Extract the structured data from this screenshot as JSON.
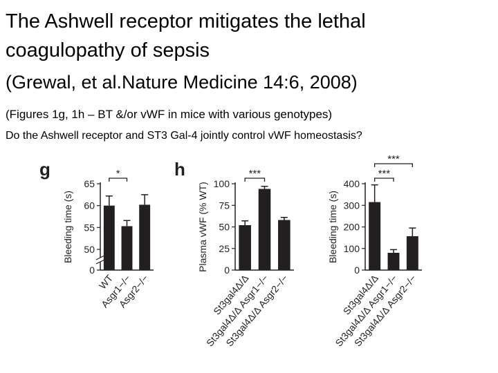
{
  "slide": {
    "title_lines": [
      "The Ashwell receptor mitigates the lethal",
      "coagulopathy of sepsis"
    ],
    "citation": "(Grewal, et al.Nature Medicine 14:6, 2008)",
    "figures_note": "(Figures 1g, 1h – BT &/or vWF in mice with various genotypes)",
    "question": "Do the Ashwell receptor and ST3 Gal-4 jointly control vWF homeostasis?"
  },
  "chart_data": [
    {
      "type": "bar",
      "panel": "g",
      "y_label": "Bleeding time (s)",
      "categories": [
        "WT",
        "Asgr1−/−",
        "Asgr2−/−"
      ],
      "values": [
        60,
        55.3,
        60.2
      ],
      "errors": [
        2.2,
        1.3,
        2.3
      ],
      "color": "#231f20",
      "ylim": [
        0,
        65
      ],
      "yticks": [
        0,
        50,
        55,
        60,
        65
      ],
      "axis_break": 50,
      "annotations": [
        {
          "text": "*",
          "from": 0,
          "to": 1
        }
      ]
    },
    {
      "type": "bar",
      "panel": "h",
      "y_label": "Plasma vWF (% WT)",
      "categories": [
        "St3gal4Δ/Δ",
        "St3gal4Δ/Δ Asgr1−/−",
        "St3gal4Δ/Δ Asgr2−/−"
      ],
      "values": [
        52,
        94,
        58
      ],
      "errors": [
        5,
        3,
        3
      ],
      "color": "#231f20",
      "ylim": [
        0,
        100
      ],
      "yticks": [
        0,
        25,
        50,
        75,
        100
      ],
      "annotations": [
        {
          "text": "***",
          "from": 0,
          "to": 1
        }
      ]
    },
    {
      "type": "bar",
      "y_label": "Bleeding time (s)",
      "categories": [
        "St3gal4Δ/Δ",
        "St3gal4Δ/Δ Asgr1−/−",
        "St3gal4Δ/Δ Asgr2−/−"
      ],
      "values": [
        315,
        80,
        157
      ],
      "errors": [
        80,
        15,
        38
      ],
      "color": "#231f20",
      "ylim": [
        0,
        400
      ],
      "yticks": [
        0,
        100,
        200,
        300,
        400
      ],
      "annotations": [
        {
          "text": "***",
          "from": 0,
          "to": 1
        },
        {
          "text": "***",
          "from": 0,
          "to": 2
        }
      ]
    }
  ]
}
